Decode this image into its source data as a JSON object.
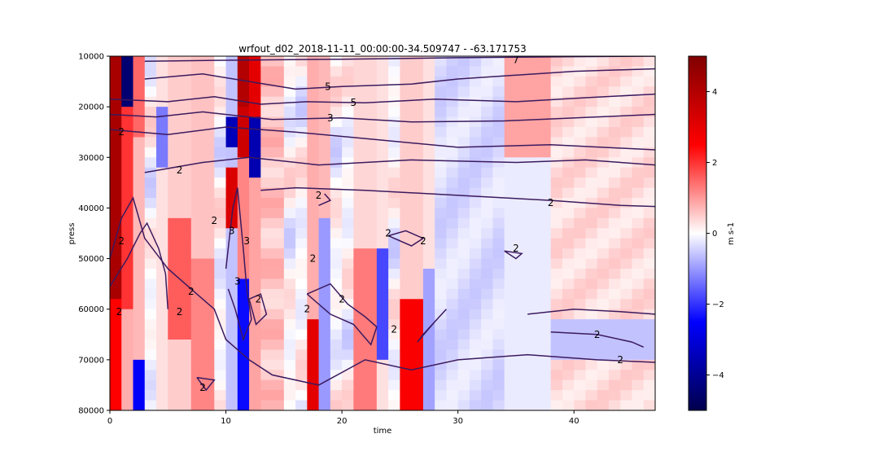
{
  "chart_data": {
    "type": "heatmap",
    "title": "wrfout_d02_2018-11-11_00:00:00-34.509747 - -63.171753",
    "xlabel": "time",
    "ylabel": "press",
    "xlim": [
      0,
      47
    ],
    "ylim": [
      80000,
      10000
    ],
    "xticks": [
      0,
      10,
      20,
      30,
      40
    ],
    "yticks": [
      10000,
      20000,
      30000,
      40000,
      50000,
      60000,
      70000,
      80000
    ],
    "colorbar": {
      "label": "m s-1",
      "range": [
        -5,
        5
      ],
      "ticks": [
        4,
        2,
        0,
        -2,
        -4
      ],
      "tick_labels": [
        "4",
        "2",
        "0",
        "−2",
        "−4"
      ],
      "colormap": "seismic"
    },
    "contour_labels": [
      {
        "text": "7",
        "x": 35.0,
        "y": 10700
      },
      {
        "text": "5",
        "x": 18.8,
        "y": 16000
      },
      {
        "text": "5",
        "x": 21.0,
        "y": 19200
      },
      {
        "text": "3",
        "x": 19.0,
        "y": 22200
      },
      {
        "text": "2",
        "x": 1.0,
        "y": 25000
      },
      {
        "text": "2",
        "x": 6.0,
        "y": 32500
      },
      {
        "text": "2",
        "x": 18.0,
        "y": 37500
      },
      {
        "text": "2",
        "x": 38.0,
        "y": 39000
      },
      {
        "text": "2",
        "x": 9.0,
        "y": 42500
      },
      {
        "text": "3",
        "x": 10.5,
        "y": 44500
      },
      {
        "text": "2",
        "x": 1.0,
        "y": 46500
      },
      {
        "text": "2",
        "x": 24.0,
        "y": 45000
      },
      {
        "text": "2",
        "x": 27.0,
        "y": 46500
      },
      {
        "text": "3",
        "x": 11.8,
        "y": 46500
      },
      {
        "text": "2",
        "x": 35.0,
        "y": 48000
      },
      {
        "text": "2",
        "x": 17.5,
        "y": 50000
      },
      {
        "text": "3",
        "x": 11.0,
        "y": 54500
      },
      {
        "text": "2",
        "x": 7.0,
        "y": 56500
      },
      {
        "text": "2",
        "x": 12.8,
        "y": 58000
      },
      {
        "text": "2",
        "x": 20.0,
        "y": 58000
      },
      {
        "text": "2",
        "x": 17.0,
        "y": 60000
      },
      {
        "text": "2",
        "x": 0.8,
        "y": 60500
      },
      {
        "text": "2",
        "x": 6.0,
        "y": 60500
      },
      {
        "text": "2",
        "x": 24.5,
        "y": 64000
      },
      {
        "text": "2",
        "x": 42.0,
        "y": 65000
      },
      {
        "text": "2",
        "x": 44.0,
        "y": 70000
      },
      {
        "text": "2",
        "x": 8.0,
        "y": 75500
      }
    ]
  }
}
